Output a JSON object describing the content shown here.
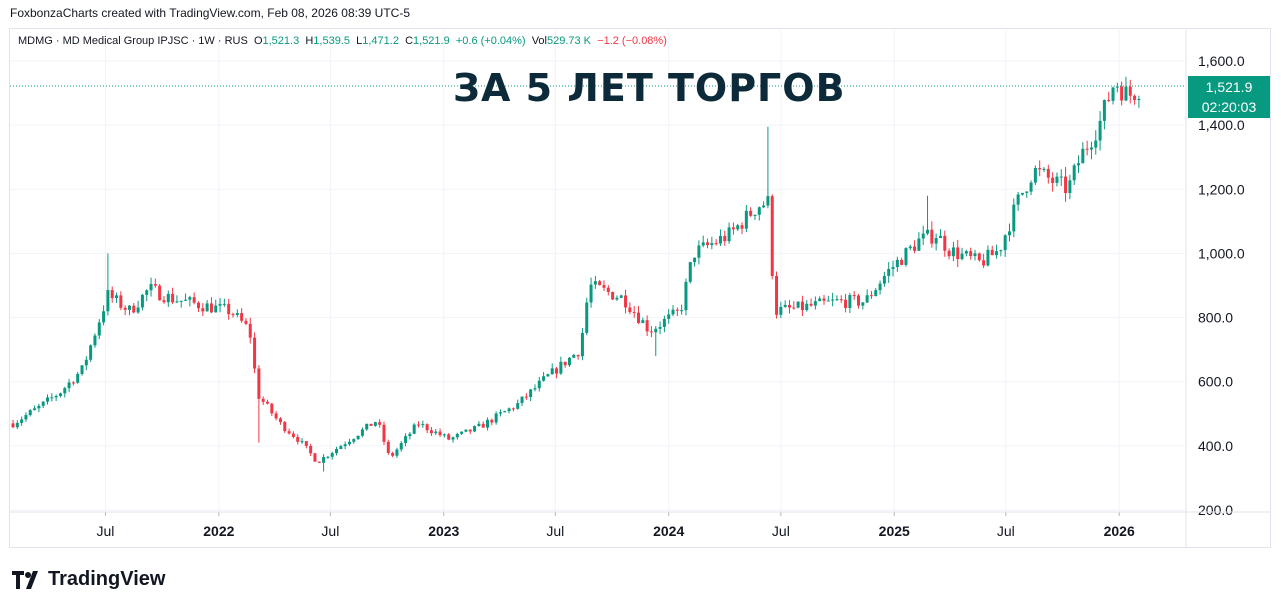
{
  "credit": "FoxbonzaCharts created with TradingView.com, Feb 08, 2026 08:39 UTC-5",
  "legend": {
    "symbol": "MDMG · MD Medical Group IPJSC · 1W · RUS",
    "open_label": "O",
    "open": "1,521.3",
    "high_label": "H",
    "high": "1,539.5",
    "low_label": "L",
    "low": "1,471.2",
    "close_label": "C",
    "close": "1,521.9",
    "change": "+0.6 (+0.04%)",
    "vol_label": "Vol",
    "vol": "529.73 K",
    "vol_change": "−1.2 (−0.08%)"
  },
  "headline": "ЗА 5 ЛЕТ ТОРГОВ",
  "price_tag": {
    "price": "1,521.9",
    "countdown": "02:20:03"
  },
  "brand": "TradingView",
  "colors": {
    "up": "#089981",
    "down": "#f23645",
    "grid": "#f0f3fa",
    "axis_text": "#131722"
  },
  "chart_data": {
    "type": "candlestick",
    "title": "MDMG · MD Medical Group IPJSC · 1W · RUS",
    "ylim": [
      200,
      1600
    ],
    "y_ticks": [
      "1,600.0",
      "1,400.0",
      "1,200.0",
      "1,000.0",
      "800.0",
      "600.0",
      "400.0",
      "200.0"
    ],
    "y_tick_values": [
      1600,
      1400,
      1200,
      1000,
      800,
      600,
      400,
      200
    ],
    "x_ticks": [
      {
        "label": "Jul",
        "date": "2021-07-01",
        "bold": false
      },
      {
        "label": "2022",
        "date": "2022-01-01",
        "bold": true
      },
      {
        "label": "Jul",
        "date": "2022-07-01",
        "bold": false
      },
      {
        "label": "2023",
        "date": "2023-01-01",
        "bold": true
      },
      {
        "label": "Jul",
        "date": "2023-07-01",
        "bold": false
      },
      {
        "label": "2024",
        "date": "2024-01-01",
        "bold": true
      },
      {
        "label": "Jul",
        "date": "2024-07-01",
        "bold": false
      },
      {
        "label": "2025",
        "date": "2025-01-01",
        "bold": true
      },
      {
        "label": "Jul",
        "date": "2025-07-01",
        "bold": false
      },
      {
        "label": "2026",
        "date": "2026-01-01",
        "bold": true
      }
    ],
    "x_range": [
      "2021-02-01",
      "2026-02-20"
    ],
    "last_price": 1521.9,
    "anchors": [
      [
        "2021-02-01",
        470
      ],
      [
        "2021-03-15",
        520
      ],
      [
        "2021-04-20",
        570
      ],
      [
        "2021-05-25",
        640
      ],
      [
        "2021-07-05",
        870
      ],
      [
        "2021-08-10",
        820
      ],
      [
        "2021-09-10",
        890
      ],
      [
        "2021-10-15",
        860
      ],
      [
        "2021-12-01",
        840
      ],
      [
        "2022-01-20",
        820
      ],
      [
        "2022-02-20",
        760
      ],
      [
        "2022-03-05",
        560
      ],
      [
        "2022-04-10",
        470
      ],
      [
        "2022-05-10",
        420
      ],
      [
        "2022-06-10",
        350
      ],
      [
        "2022-08-01",
        420
      ],
      [
        "2022-09-15",
        480
      ],
      [
        "2022-10-05",
        360
      ],
      [
        "2022-11-20",
        470
      ],
      [
        "2023-01-10",
        420
      ],
      [
        "2023-03-01",
        460
      ],
      [
        "2023-05-01",
        530
      ],
      [
        "2023-06-15",
        610
      ],
      [
        "2023-08-10",
        700
      ],
      [
        "2023-08-25",
        900
      ],
      [
        "2023-10-20",
        860
      ],
      [
        "2023-12-01",
        760
      ],
      [
        "2024-01-20",
        820
      ],
      [
        "2024-02-10",
        1000
      ],
      [
        "2024-04-10",
        1060
      ],
      [
        "2024-05-25",
        1150
      ],
      [
        "2024-06-12",
        1160
      ],
      [
        "2024-06-20",
        820
      ],
      [
        "2024-08-01",
        830
      ],
      [
        "2024-10-01",
        850
      ],
      [
        "2024-11-15",
        850
      ],
      [
        "2024-12-20",
        940
      ],
      [
        "2025-02-10",
        1040
      ],
      [
        "2025-03-10",
        1060
      ],
      [
        "2025-04-01",
        1010
      ],
      [
        "2025-05-20",
        970
      ],
      [
        "2025-06-20",
        1010
      ],
      [
        "2025-07-20",
        1160
      ],
      [
        "2025-08-15",
        1260
      ],
      [
        "2025-09-20",
        1220
      ],
      [
        "2025-10-10",
        1200
      ],
      [
        "2025-10-30",
        1300
      ],
      [
        "2025-12-01",
        1410
      ],
      [
        "2025-12-25",
        1540
      ],
      [
        "2026-01-15",
        1490
      ],
      [
        "2026-02-06",
        1521.9
      ]
    ],
    "spikes": [
      {
        "date": "2021-07-05",
        "high": 1000
      },
      {
        "date": "2022-03-05",
        "low": 410
      },
      {
        "date": "2024-06-13",
        "high": 1395
      },
      {
        "date": "2025-02-24",
        "high": 1180
      },
      {
        "date": "2022-06-20",
        "low": 320
      },
      {
        "date": "2023-12-12",
        "low": 680
      }
    ]
  }
}
